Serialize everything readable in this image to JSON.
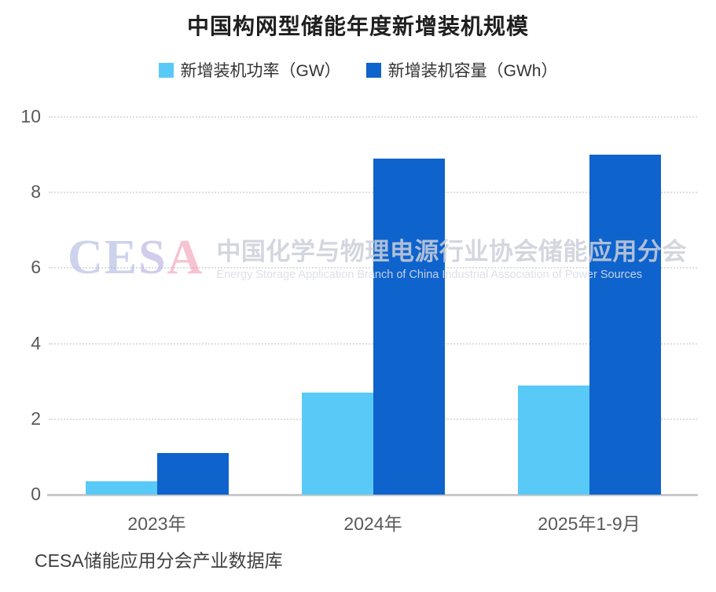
{
  "title": "中国构网型储能年度新增装机规模",
  "chart_data": {
    "type": "bar",
    "categories": [
      "2023年",
      "2024年",
      "2025年1-9月"
    ],
    "series": [
      {
        "name": "新增装机功率（GW）",
        "color": "#59CAF7",
        "values": [
          0.35,
          2.7,
          2.9
        ]
      },
      {
        "name": "新增装机容量（GWh）",
        "color": "#0E63CD",
        "values": [
          1.1,
          8.9,
          9.0
        ]
      }
    ],
    "title": "中国构网型储能年度新增装机规模",
    "xlabel": "",
    "ylabel": "",
    "ylim": [
      0,
      10
    ],
    "yticks": [
      0,
      2,
      4,
      6,
      8,
      10
    ],
    "grid": "horizontal-dotted",
    "legend_position": "top"
  },
  "watermark": {
    "logo_text": "CESA",
    "logo_letter_colors": [
      "rgba(172, 182, 224, 0.6)",
      "rgba(172, 182, 224, 0.6)",
      "rgba(178, 172, 222, 0.6)",
      "rgba(240, 146, 172, 0.55)"
    ],
    "line_cn": "中国化学与物理电源行业协会储能应用分会",
    "line_en": "Energy Storage Application Branch of China Industrial Association of Power Sources"
  },
  "footer": {
    "source": "CESA储能应用分会产业数据库"
  },
  "colors": {
    "power_bar": "#59CAF7",
    "capacity_bar": "#0E63CD",
    "grid": "#dedede",
    "axis": "#c9c9c9",
    "tick_text": "#595959",
    "title_text": "#1f1f1f"
  }
}
